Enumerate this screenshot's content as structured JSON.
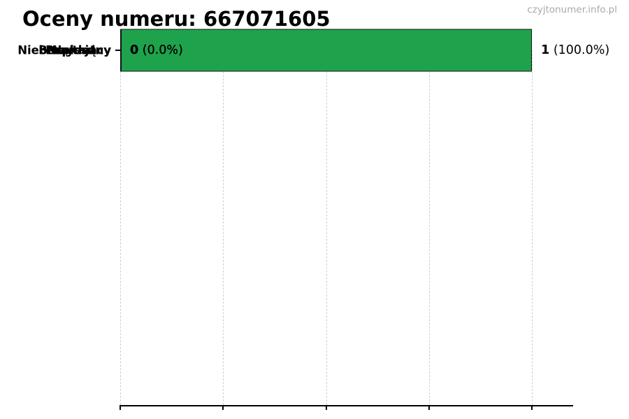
{
  "chart_data": {
    "type": "bar",
    "orientation": "horizontal",
    "title": "Oceny numeru: 667071605",
    "watermark": "czyjtonumer.info.pl",
    "categories": [
      "Przydatny",
      "Bezpieczny",
      "Neutralny",
      "Nękający",
      "Niebezpieczny"
    ],
    "values": [
      1,
      0,
      0,
      0,
      0
    ],
    "value_labels": [
      {
        "count": "1",
        "pct": "(100.0%)"
      },
      {
        "count": "0",
        "pct": "(0.0%)"
      },
      {
        "count": "0",
        "pct": "(0.0%)"
      },
      {
        "count": "0",
        "pct": "(0.0%)"
      },
      {
        "count": "0",
        "pct": "(0.0%)"
      }
    ],
    "xlim": [
      0,
      1.1
    ],
    "x_ticks": [
      0,
      0.25,
      0.5,
      0.75,
      1.0
    ],
    "x_tick_labels_shown": false,
    "grid": "dashed-vertical",
    "legend": "none",
    "bar_color": "#1ea34c",
    "bar_border_color": "#111111",
    "grid_color": "#cfcfcf",
    "title_color": "#000000",
    "watermark_color": "#a9a9a9"
  }
}
